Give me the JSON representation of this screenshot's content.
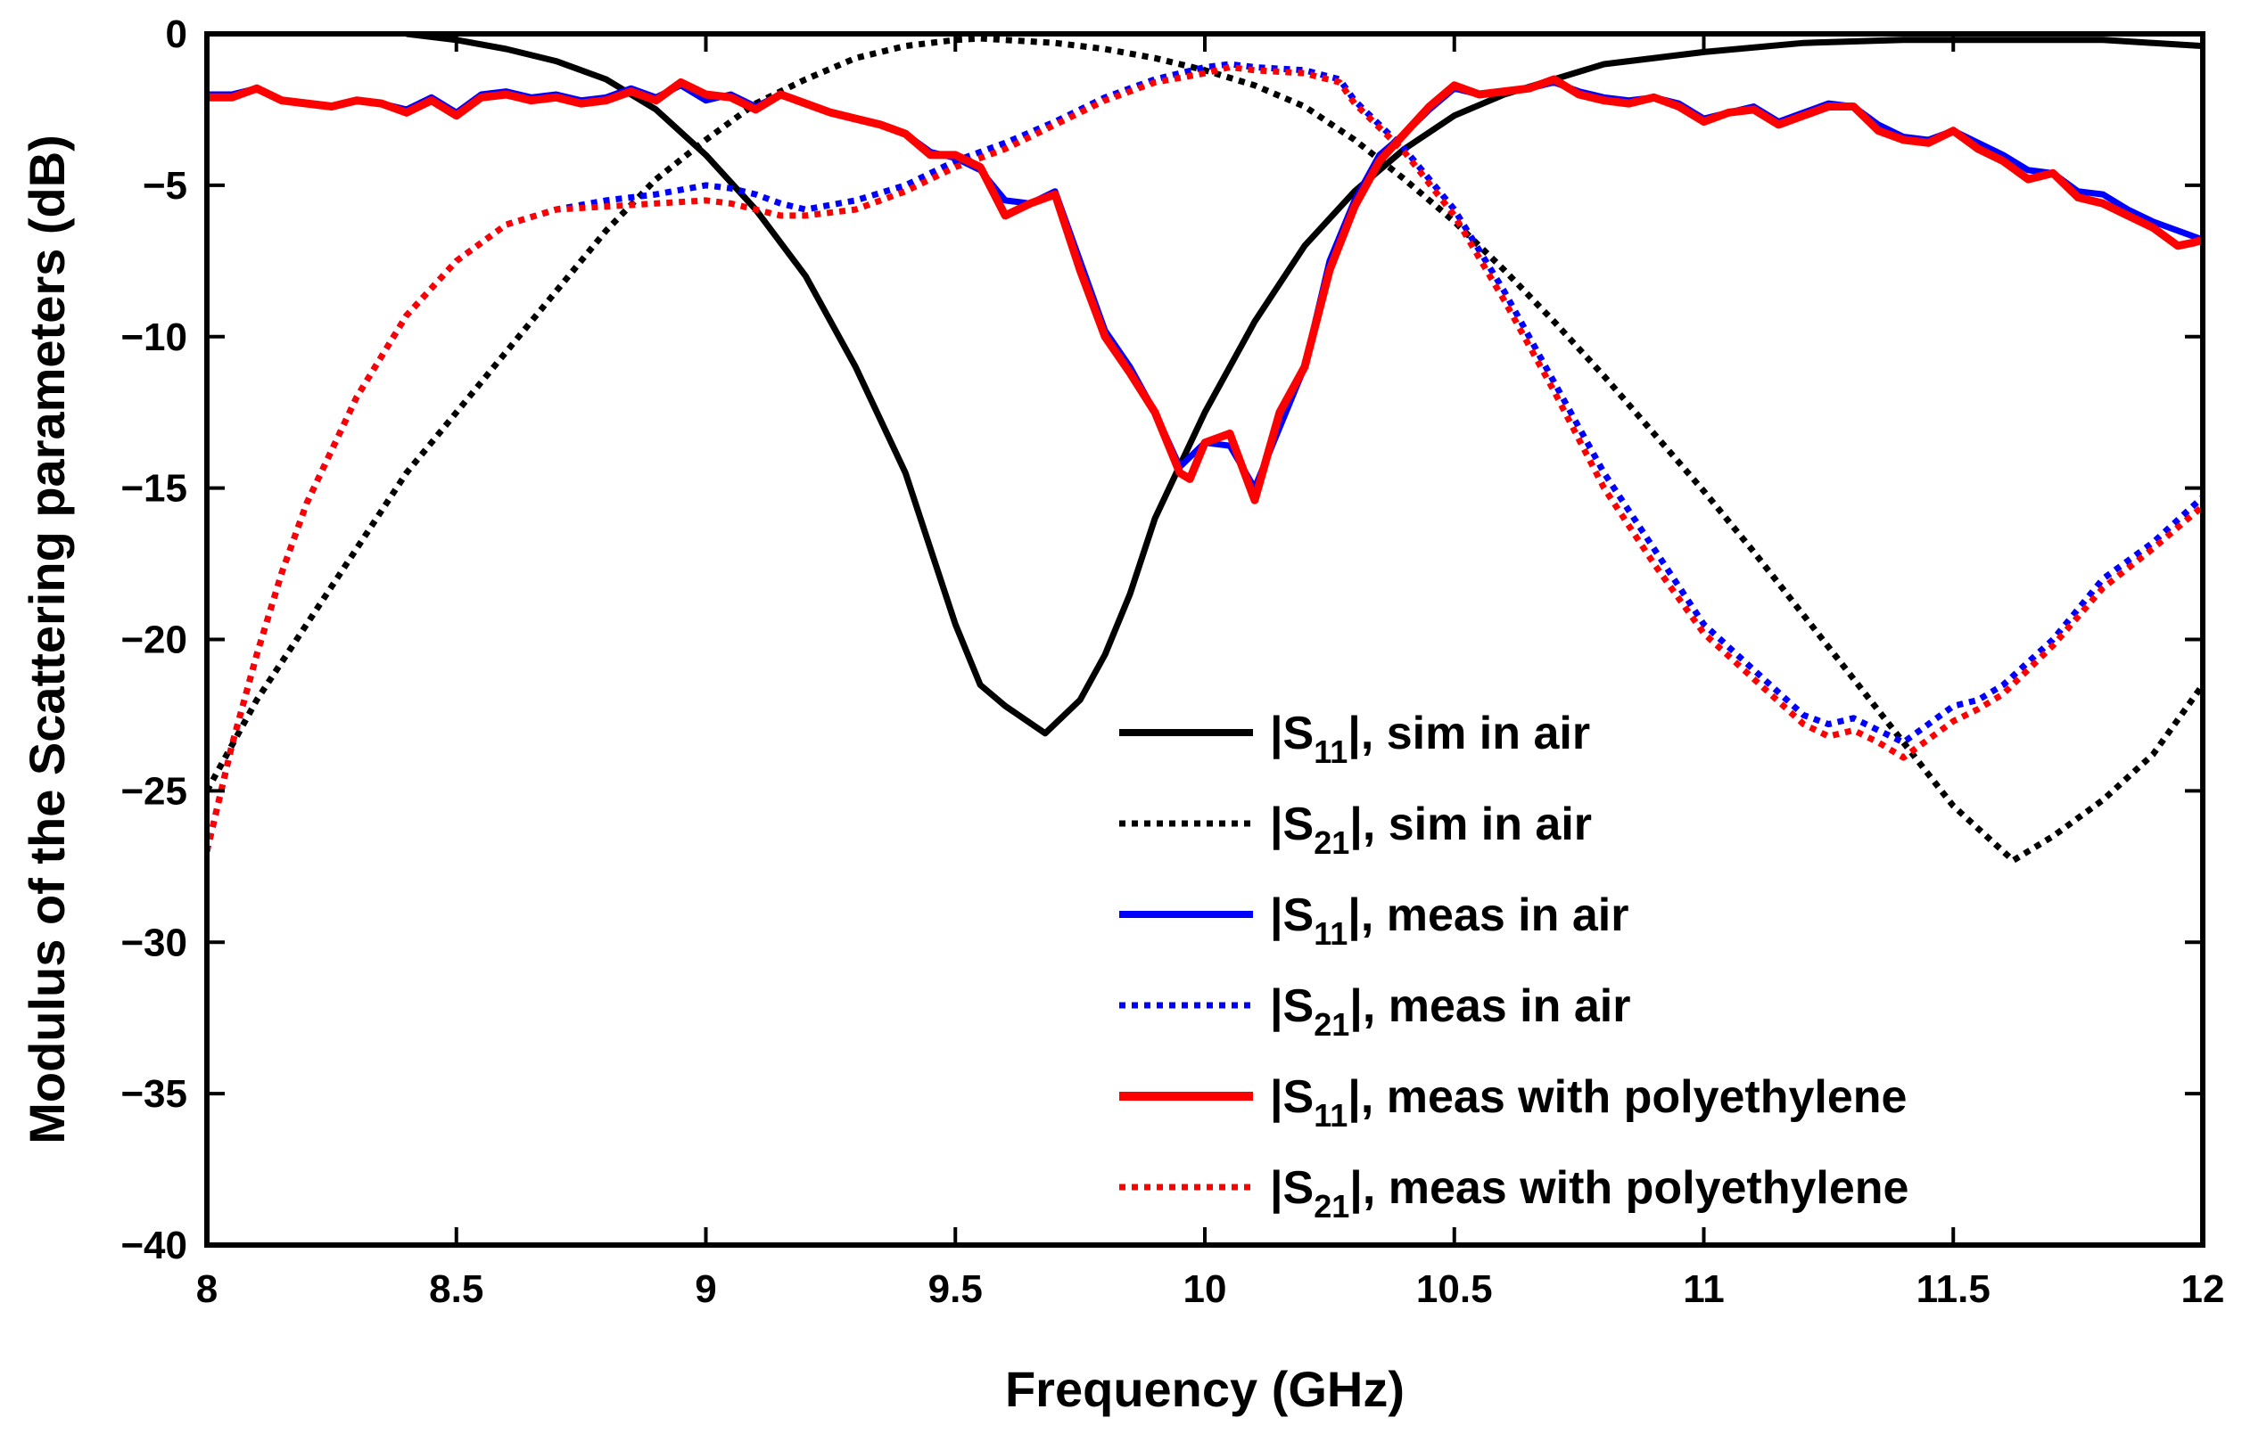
{
  "chart_data": {
    "type": "line",
    "title": "",
    "xlabel": "Frequency (GHz)",
    "ylabel": "Modulus of the Scattering parameters (dB)",
    "xlim": [
      8,
      12
    ],
    "ylim": [
      -40,
      0
    ],
    "xticks": [
      8,
      8.5,
      9,
      9.5,
      10,
      10.5,
      11,
      11.5,
      12
    ],
    "xtick_labels": [
      "8",
      "8.5",
      "9",
      "9.5",
      "10",
      "10.5",
      "11",
      "11.5",
      "12"
    ],
    "yticks": [
      0,
      -5,
      -10,
      -15,
      -20,
      -25,
      -30,
      -35,
      -40
    ],
    "ytick_labels": [
      "0",
      "-5",
      "-10",
      "-15",
      "-20",
      "-25",
      "-30",
      "-35",
      "-40"
    ],
    "grid": false,
    "legend_position": "bottom-right",
    "series": [
      {
        "name_prefix": "|S",
        "name_sub": "11",
        "name_suffix": "|, sim in air",
        "color": "#000000",
        "style": "solid",
        "x": [
          8.4,
          8.5,
          8.6,
          8.7,
          8.8,
          8.9,
          9.0,
          9.1,
          9.2,
          9.3,
          9.4,
          9.45,
          9.5,
          9.55,
          9.6,
          9.68,
          9.75,
          9.8,
          9.85,
          9.9,
          10.0,
          10.1,
          10.2,
          10.3,
          10.4,
          10.5,
          10.6,
          10.7,
          10.8,
          11.0,
          11.2,
          11.4,
          11.6,
          11.8,
          12.0
        ],
        "y": [
          0,
          -0.2,
          -0.5,
          -0.9,
          -1.5,
          -2.5,
          -4.0,
          -5.8,
          -8.0,
          -11.0,
          -14.5,
          -17.0,
          -19.5,
          -21.5,
          -22.2,
          -23.1,
          -22.0,
          -20.5,
          -18.5,
          -16.0,
          -12.5,
          -9.5,
          -7.0,
          -5.2,
          -3.8,
          -2.7,
          -2.0,
          -1.5,
          -1.0,
          -0.6,
          -0.3,
          -0.2,
          -0.2,
          -0.2,
          -0.4
        ]
      },
      {
        "name_prefix": "|S",
        "name_sub": "21",
        "name_suffix": "|, sim in air",
        "color": "#000000",
        "style": "dotted",
        "x": [
          8.0,
          8.1,
          8.2,
          8.3,
          8.4,
          8.5,
          8.6,
          8.7,
          8.8,
          8.9,
          9.0,
          9.1,
          9.2,
          9.3,
          9.4,
          9.5,
          9.55,
          9.6,
          9.7,
          9.8,
          9.9,
          10.0,
          10.1,
          10.2,
          10.3,
          10.4,
          10.5,
          10.6,
          10.7,
          10.8,
          10.9,
          11.0,
          11.1,
          11.2,
          11.3,
          11.4,
          11.5,
          11.6,
          11.62,
          11.7,
          11.8,
          11.9,
          12.0
        ],
        "y": [
          -25.0,
          -22.0,
          -19.5,
          -17.0,
          -14.5,
          -12.5,
          -10.5,
          -8.5,
          -6.5,
          -4.8,
          -3.5,
          -2.3,
          -1.5,
          -0.8,
          -0.4,
          -0.2,
          -0.15,
          -0.2,
          -0.3,
          -0.5,
          -0.8,
          -1.2,
          -1.7,
          -2.4,
          -3.5,
          -4.8,
          -6.2,
          -7.8,
          -9.5,
          -11.3,
          -13.2,
          -15.1,
          -17.1,
          -19.2,
          -21.3,
          -23.4,
          -25.5,
          -27.0,
          -27.3,
          -26.5,
          -25.3,
          -23.8,
          -21.5
        ]
      },
      {
        "name_prefix": "|S",
        "name_sub": "11",
        "name_suffix": "|, meas in air",
        "color": "#0000ff",
        "style": "solid",
        "x": [
          8.0,
          8.05,
          8.1,
          8.15,
          8.2,
          8.25,
          8.3,
          8.35,
          8.4,
          8.45,
          8.5,
          8.55,
          8.6,
          8.65,
          8.7,
          8.75,
          8.8,
          8.85,
          8.9,
          8.95,
          9.0,
          9.05,
          9.1,
          9.15,
          9.2,
          9.25,
          9.3,
          9.35,
          9.4,
          9.45,
          9.5,
          9.55,
          9.6,
          9.65,
          9.7,
          9.75,
          9.8,
          9.85,
          9.9,
          9.95,
          10.0,
          10.05,
          10.1,
          10.15,
          10.2,
          10.25,
          10.3,
          10.35,
          10.4,
          10.45,
          10.5,
          10.55,
          10.6,
          10.65,
          10.7,
          10.75,
          10.8,
          10.85,
          10.9,
          10.95,
          11.0,
          11.05,
          11.1,
          11.15,
          11.2,
          11.25,
          11.3,
          11.35,
          11.4,
          11.45,
          11.5,
          11.55,
          11.6,
          11.65,
          11.7,
          11.75,
          11.8,
          11.85,
          11.9,
          11.95,
          12.0
        ],
        "y": [
          -2.0,
          -2.0,
          -1.8,
          -2.2,
          -2.3,
          -2.4,
          -2.2,
          -2.3,
          -2.5,
          -2.1,
          -2.6,
          -2.0,
          -1.9,
          -2.1,
          -2.0,
          -2.2,
          -2.1,
          -1.8,
          -2.1,
          -1.7,
          -2.2,
          -2.0,
          -2.4,
          -2.0,
          -2.3,
          -2.6,
          -2.8,
          -3.0,
          -3.3,
          -3.9,
          -4.1,
          -4.5,
          -5.5,
          -5.6,
          -5.2,
          -7.5,
          -9.8,
          -11.0,
          -12.5,
          -14.3,
          -13.5,
          -13.6,
          -15.0,
          -13.0,
          -11.0,
          -7.5,
          -5.5,
          -4.0,
          -3.3,
          -2.5,
          -1.8,
          -2.0,
          -1.9,
          -1.8,
          -1.6,
          -1.9,
          -2.1,
          -2.2,
          -2.1,
          -2.3,
          -2.8,
          -2.6,
          -2.4,
          -2.9,
          -2.6,
          -2.3,
          -2.4,
          -3.0,
          -3.4,
          -3.5,
          -3.2,
          -3.6,
          -4.0,
          -4.5,
          -4.6,
          -5.2,
          -5.3,
          -5.8,
          -6.2,
          -6.5,
          -6.8
        ]
      },
      {
        "name_prefix": "|S",
        "name_sub": "21",
        "name_suffix": "|, meas in air",
        "color": "#0000ff",
        "style": "dotted",
        "x": [
          8.0,
          8.05,
          8.1,
          8.15,
          8.2,
          8.3,
          8.4,
          8.5,
          8.6,
          8.7,
          8.8,
          8.9,
          9.0,
          9.05,
          9.1,
          9.15,
          9.2,
          9.3,
          9.4,
          9.5,
          9.6,
          9.7,
          9.8,
          9.9,
          10.0,
          10.05,
          10.1,
          10.2,
          10.27,
          10.3,
          10.35,
          10.4,
          10.5,
          10.6,
          10.7,
          10.8,
          10.9,
          11.0,
          11.1,
          11.2,
          11.25,
          11.3,
          11.35,
          11.4,
          11.45,
          11.5,
          11.55,
          11.6,
          11.7,
          11.8,
          11.9,
          12.0
        ],
        "y": [
          -27.0,
          -23.5,
          -20.5,
          -17.8,
          -15.5,
          -12.0,
          -9.3,
          -7.5,
          -6.3,
          -5.8,
          -5.5,
          -5.3,
          -5.0,
          -5.1,
          -5.3,
          -5.6,
          -5.8,
          -5.5,
          -5.0,
          -4.2,
          -3.6,
          -2.9,
          -2.1,
          -1.5,
          -1.1,
          -1.0,
          -1.1,
          -1.2,
          -1.5,
          -2.2,
          -3.0,
          -3.8,
          -5.8,
          -8.5,
          -11.5,
          -14.5,
          -17.0,
          -19.5,
          -21.0,
          -22.5,
          -22.8,
          -22.6,
          -23.0,
          -23.4,
          -22.8,
          -22.2,
          -22.0,
          -21.5,
          -20.0,
          -18.0,
          -16.8,
          -15.3
        ]
      },
      {
        "name_prefix": "|S",
        "name_sub": "11",
        "name_suffix": "|, meas with polyethylene",
        "color": "#ff0000",
        "style": "solid",
        "x": [
          8.0,
          8.05,
          8.1,
          8.15,
          8.2,
          8.25,
          8.3,
          8.35,
          8.4,
          8.45,
          8.5,
          8.55,
          8.6,
          8.65,
          8.7,
          8.75,
          8.8,
          8.85,
          8.9,
          8.95,
          9.0,
          9.05,
          9.1,
          9.15,
          9.2,
          9.25,
          9.3,
          9.35,
          9.4,
          9.45,
          9.5,
          9.55,
          9.6,
          9.65,
          9.7,
          9.75,
          9.8,
          9.85,
          9.9,
          9.95,
          9.97,
          10.0,
          10.05,
          10.1,
          10.15,
          10.2,
          10.25,
          10.3,
          10.35,
          10.4,
          10.45,
          10.5,
          10.55,
          10.6,
          10.65,
          10.7,
          10.75,
          10.8,
          10.85,
          10.9,
          10.95,
          11.0,
          11.05,
          11.1,
          11.15,
          11.2,
          11.25,
          11.3,
          11.35,
          11.4,
          11.45,
          11.5,
          11.55,
          11.6,
          11.65,
          11.7,
          11.75,
          11.8,
          11.85,
          11.9,
          11.95,
          11.98,
          12.0
        ],
        "y": [
          -2.1,
          -2.1,
          -1.8,
          -2.2,
          -2.3,
          -2.4,
          -2.2,
          -2.3,
          -2.6,
          -2.2,
          -2.7,
          -2.1,
          -2.0,
          -2.2,
          -2.1,
          -2.3,
          -2.2,
          -1.9,
          -2.2,
          -1.6,
          -2.0,
          -2.1,
          -2.5,
          -2.0,
          -2.3,
          -2.6,
          -2.8,
          -3.0,
          -3.3,
          -4.0,
          -4.0,
          -4.4,
          -6.0,
          -5.6,
          -5.3,
          -7.8,
          -10.0,
          -11.2,
          -12.5,
          -14.5,
          -14.7,
          -13.5,
          -13.2,
          -15.4,
          -12.5,
          -11.0,
          -7.8,
          -5.7,
          -4.2,
          -3.3,
          -2.4,
          -1.7,
          -2.0,
          -1.9,
          -1.8,
          -1.5,
          -2.0,
          -2.2,
          -2.3,
          -2.1,
          -2.4,
          -2.9,
          -2.6,
          -2.5,
          -3.0,
          -2.7,
          -2.4,
          -2.4,
          -3.2,
          -3.5,
          -3.6,
          -3.2,
          -3.8,
          -4.2,
          -4.8,
          -4.6,
          -5.4,
          -5.6,
          -6.0,
          -6.4,
          -7.0,
          -6.9,
          -6.8
        ]
      },
      {
        "name_prefix": "|S",
        "name_sub": "21",
        "name_suffix": "|, meas with polyethylene",
        "color": "#ff0000",
        "style": "dotted",
        "x": [
          8.0,
          8.05,
          8.1,
          8.15,
          8.2,
          8.3,
          8.4,
          8.5,
          8.6,
          8.7,
          8.8,
          8.9,
          9.0,
          9.05,
          9.1,
          9.15,
          9.2,
          9.3,
          9.4,
          9.5,
          9.6,
          9.7,
          9.8,
          9.9,
          10.0,
          10.05,
          10.1,
          10.2,
          10.27,
          10.3,
          10.35,
          10.4,
          10.5,
          10.6,
          10.7,
          10.8,
          10.9,
          11.0,
          11.1,
          11.2,
          11.25,
          11.3,
          11.35,
          11.4,
          11.45,
          11.5,
          11.55,
          11.6,
          11.7,
          11.8,
          11.9,
          12.0
        ],
        "y": [
          -27.0,
          -23.5,
          -20.5,
          -17.8,
          -15.5,
          -12.0,
          -9.3,
          -7.5,
          -6.3,
          -5.8,
          -5.7,
          -5.6,
          -5.5,
          -5.6,
          -5.8,
          -6.0,
          -6.0,
          -5.8,
          -5.2,
          -4.4,
          -3.8,
          -3.0,
          -2.2,
          -1.6,
          -1.3,
          -1.1,
          -1.2,
          -1.3,
          -1.6,
          -2.3,
          -3.1,
          -3.9,
          -6.0,
          -8.8,
          -11.8,
          -15.0,
          -17.5,
          -19.8,
          -21.3,
          -22.8,
          -23.2,
          -23.0,
          -23.4,
          -23.9,
          -23.3,
          -22.7,
          -22.3,
          -21.8,
          -20.2,
          -18.3,
          -17.0,
          -15.6
        ]
      }
    ]
  }
}
